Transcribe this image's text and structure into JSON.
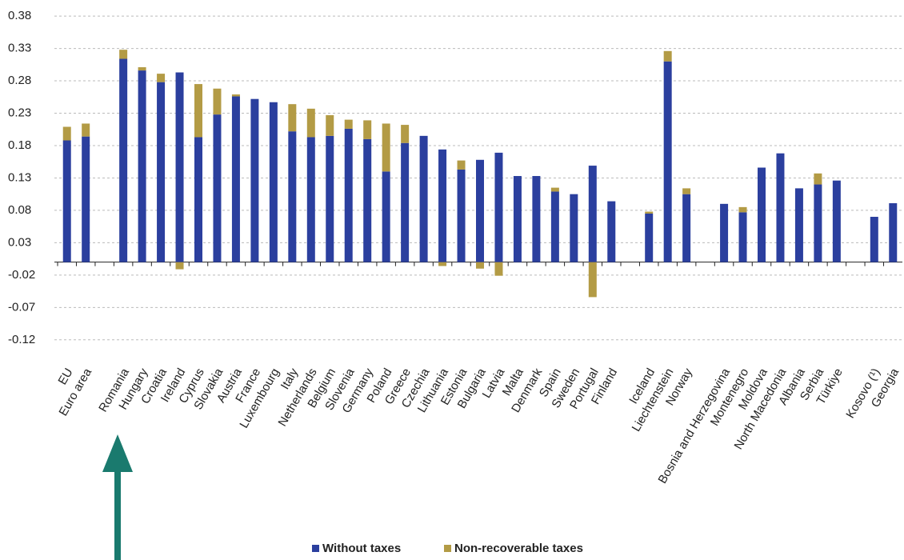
{
  "chart_data": {
    "type": "stacked-bar",
    "categories": [
      "EU",
      "Euro area",
      null,
      "Romania",
      "Hungary",
      "Croatia",
      "Ireland",
      "Cyprus",
      "Slovakia",
      "Austria",
      "France",
      "Luxembourg",
      "Italy",
      "Netherlands",
      "Belgium",
      "Slovenia",
      "Germany",
      "Poland",
      "Greece",
      "Czechia",
      "Lithuania",
      "Estonia",
      "Bulgaria",
      "Latvia",
      "Malta",
      "Denmark",
      "Spain",
      "Sweden",
      "Portugal",
      "Finland",
      null,
      "Iceland",
      "Liechtenstein",
      "Norway",
      null,
      "Bosnia and Herzegovina",
      "Montenegro",
      "Moldova",
      "North Macedonia",
      "Albania",
      "Serbia",
      "Türkiye",
      null,
      "Kosovo (¹)",
      "Georgia"
    ],
    "series": [
      {
        "name": "Without taxes",
        "color": "#2b3f9e",
        "values": [
          0.188,
          0.194,
          null,
          0.314,
          0.296,
          0.278,
          0.293,
          0.193,
          0.228,
          0.256,
          0.252,
          0.247,
          0.202,
          0.193,
          0.195,
          0.206,
          0.19,
          0.14,
          0.184,
          0.195,
          0.174,
          0.143,
          0.158,
          0.169,
          0.133,
          0.133,
          0.109,
          0.105,
          0.149,
          0.094,
          null,
          0.075,
          0.31,
          0.105,
          null,
          0.09,
          0.077,
          0.146,
          0.168,
          0.114,
          0.12,
          0.126,
          null,
          0.07,
          0.091
        ]
      },
      {
        "name": "Non-recoverable taxes",
        "color": "#b39b45",
        "values": [
          0.021,
          0.02,
          null,
          0.014,
          0.005,
          0.013,
          -0.011,
          0.082,
          0.04,
          0.003,
          0,
          0,
          0.042,
          0.044,
          0.032,
          0.014,
          0.029,
          0.074,
          0.028,
          0,
          -0.006,
          0.014,
          -0.01,
          -0.021,
          0,
          0,
          0.006,
          0,
          -0.054,
          0,
          null,
          0.003,
          0.016,
          0.009,
          null,
          0,
          0.008,
          0,
          0,
          0,
          0.017,
          0,
          null,
          0,
          0
        ]
      }
    ],
    "ylim": [
      -0.14,
      0.39
    ],
    "yticks": [
      -0.12,
      -0.07,
      -0.02,
      0.03,
      0.08,
      0.13,
      0.18,
      0.23,
      0.28,
      0.33,
      0.38
    ],
    "grid": true
  }
}
